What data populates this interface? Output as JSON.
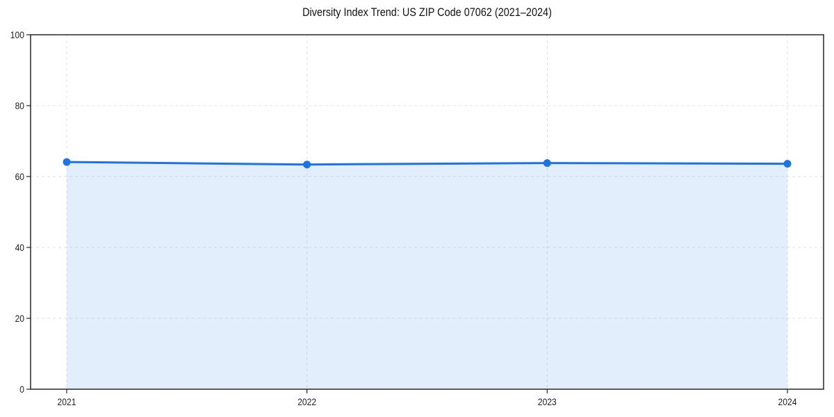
{
  "figure": {
    "background": "#ffffff"
  },
  "chart_data": {
    "type": "line",
    "title": "Diversity Index Trend: US ZIP Code 07062 (2021–2024)",
    "categories": [
      "2021",
      "2022",
      "2023",
      "2024"
    ],
    "series": [
      {
        "name": "Diversity Index",
        "values": [
          64.1,
          63.4,
          63.8,
          63.6
        ],
        "color": "#1a73e8",
        "marker": "circle",
        "area_fill": true,
        "fill_opacity": 0.12
      }
    ],
    "xlabel": "",
    "ylabel": "",
    "ylim": [
      0,
      100
    ],
    "yticks": [
      0,
      20,
      40,
      60,
      80,
      100
    ],
    "grid": true,
    "grid_line_style": "dashed",
    "grid_color": "#e2e2e2",
    "axis_color": "#262626",
    "tick_label_color": "#1f1f1f",
    "legend_position": "none"
  }
}
